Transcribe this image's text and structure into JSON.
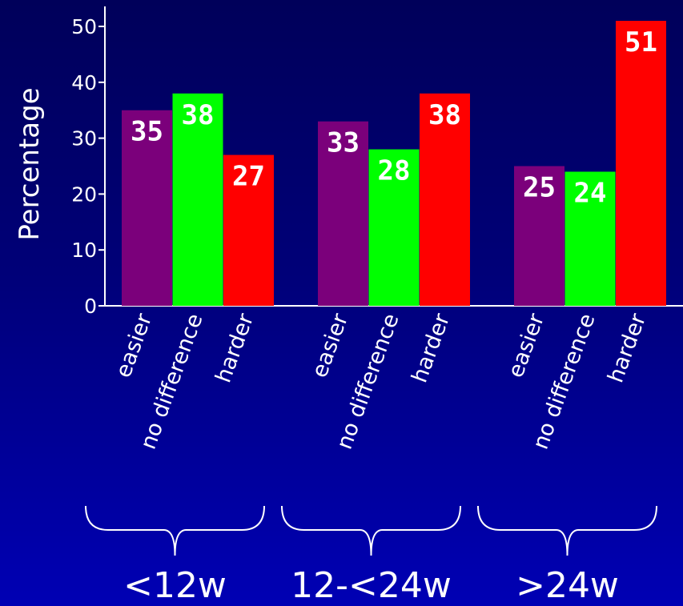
{
  "chart_data": {
    "type": "bar",
    "ylabel": "Percentage",
    "ylim": [
      0,
      52
    ],
    "yticks": [
      0,
      10,
      20,
      30,
      40,
      50
    ],
    "grid": false,
    "legend": "none",
    "groups": [
      {
        "label": "<12w",
        "bars": [
          {
            "category": "easier",
            "value": 35,
            "color": "#7b007b"
          },
          {
            "category": "no difference",
            "value": 38,
            "color": "#00ff00"
          },
          {
            "category": "harder",
            "value": 27,
            "color": "#ff0000"
          }
        ]
      },
      {
        "label": "12-<24w",
        "bars": [
          {
            "category": "easier",
            "value": 33,
            "color": "#7b007b"
          },
          {
            "category": "no difference",
            "value": 28,
            "color": "#00ff00"
          },
          {
            "category": "harder",
            "value": 38,
            "color": "#ff0000"
          }
        ]
      },
      {
        "label": ">24w",
        "bars": [
          {
            "category": "easier",
            "value": 25,
            "color": "#7b007b"
          },
          {
            "category": "no difference",
            "value": 24,
            "color": "#00ff00"
          },
          {
            "category": "harder",
            "value": 51,
            "color": "#ff0000"
          }
        ]
      }
    ]
  }
}
